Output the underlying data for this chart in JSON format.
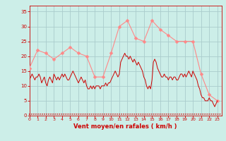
{
  "bg_color": "#cceee8",
  "grid_color": "#aacccc",
  "line_color_mean": "#cc0000",
  "line_color_gust": "#ff8888",
  "xlabel": "Vent moyen/en rafales ( km/h )",
  "xlabel_color": "#cc0000",
  "tick_color": "#cc0000",
  "ylim": [
    0,
    37
  ],
  "xlim": [
    0,
    23.5
  ],
  "yticks": [
    0,
    5,
    10,
    15,
    20,
    25,
    30,
    35
  ],
  "xticks": [
    0,
    1,
    2,
    3,
    4,
    5,
    6,
    7,
    8,
    9,
    10,
    11,
    12,
    13,
    14,
    15,
    16,
    17,
    18,
    19,
    20,
    21,
    22,
    23
  ],
  "gust_x": [
    0,
    1,
    2,
    3,
    4,
    5,
    6,
    7,
    8,
    9,
    10,
    11,
    12,
    13,
    14,
    15,
    16,
    17,
    18,
    19,
    20,
    21,
    22,
    23
  ],
  "gust_y": [
    16,
    22,
    21,
    19,
    21,
    23,
    21,
    20,
    13,
    13,
    21,
    30,
    32,
    26,
    25,
    32,
    29,
    27,
    25,
    25,
    25,
    14,
    7,
    5
  ],
  "mean_x": [
    0.0,
    0.17,
    0.33,
    0.5,
    0.67,
    0.83,
    1.0,
    1.17,
    1.33,
    1.5,
    1.67,
    1.83,
    2.0,
    2.17,
    2.33,
    2.5,
    2.67,
    2.83,
    3.0,
    3.17,
    3.33,
    3.5,
    3.67,
    3.83,
    4.0,
    4.17,
    4.33,
    4.5,
    4.67,
    4.83,
    5.0,
    5.17,
    5.33,
    5.5,
    5.67,
    5.83,
    6.0,
    6.17,
    6.33,
    6.5,
    6.67,
    6.83,
    7.0,
    7.17,
    7.33,
    7.5,
    7.67,
    7.83,
    8.0,
    8.17,
    8.33,
    8.5,
    8.67,
    8.83,
    9.0,
    9.17,
    9.33,
    9.5,
    9.67,
    9.83,
    10.0,
    10.17,
    10.33,
    10.5,
    10.67,
    10.83,
    11.0,
    11.17,
    11.33,
    11.5,
    11.67,
    11.83,
    12.0,
    12.17,
    12.33,
    12.5,
    12.67,
    12.83,
    13.0,
    13.17,
    13.33,
    13.5,
    13.67,
    13.83,
    14.0,
    14.17,
    14.33,
    14.5,
    14.67,
    14.83,
    15.0,
    15.17,
    15.33,
    15.5,
    15.67,
    15.83,
    16.0,
    16.17,
    16.33,
    16.5,
    16.67,
    16.83,
    17.0,
    17.17,
    17.33,
    17.5,
    17.67,
    17.83,
    18.0,
    18.17,
    18.33,
    18.5,
    18.67,
    18.83,
    19.0,
    19.17,
    19.33,
    19.5,
    19.67,
    19.83,
    20.0,
    20.17,
    20.33,
    20.5,
    20.67,
    20.83,
    21.0,
    21.17,
    21.33,
    21.5,
    21.67,
    21.83,
    22.0,
    22.17,
    22.33,
    22.5,
    22.67,
    22.83,
    23.0
  ],
  "mean_y": [
    12,
    13,
    14,
    13,
    12,
    13,
    13,
    14,
    13,
    11,
    12,
    13,
    11,
    10,
    12,
    13,
    12,
    11,
    14,
    13,
    12,
    13,
    12,
    13,
    14,
    13,
    14,
    13,
    12,
    12,
    13,
    14,
    15,
    14,
    13,
    12,
    11,
    12,
    13,
    12,
    11,
    12,
    10,
    9,
    9,
    10,
    9,
    10,
    9,
    10,
    10,
    10,
    9,
    10,
    10,
    10,
    11,
    10,
    11,
    11,
    12,
    13,
    14,
    15,
    14,
    13,
    14,
    18,
    19,
    20,
    21,
    20,
    20,
    19,
    20,
    19,
    18,
    19,
    18,
    17,
    18,
    17,
    16,
    15,
    13,
    12,
    10,
    9,
    10,
    9,
    12,
    18,
    19,
    18,
    16,
    15,
    14,
    13,
    13,
    14,
    13,
    13,
    12,
    13,
    13,
    12,
    13,
    13,
    12,
    12,
    13,
    14,
    14,
    13,
    14,
    13,
    14,
    15,
    14,
    13,
    15,
    14,
    13,
    12,
    10,
    9,
    7,
    6,
    6,
    5,
    5,
    5,
    6,
    5,
    5,
    4,
    3,
    4,
    5
  ],
  "marker_size": 2.5
}
